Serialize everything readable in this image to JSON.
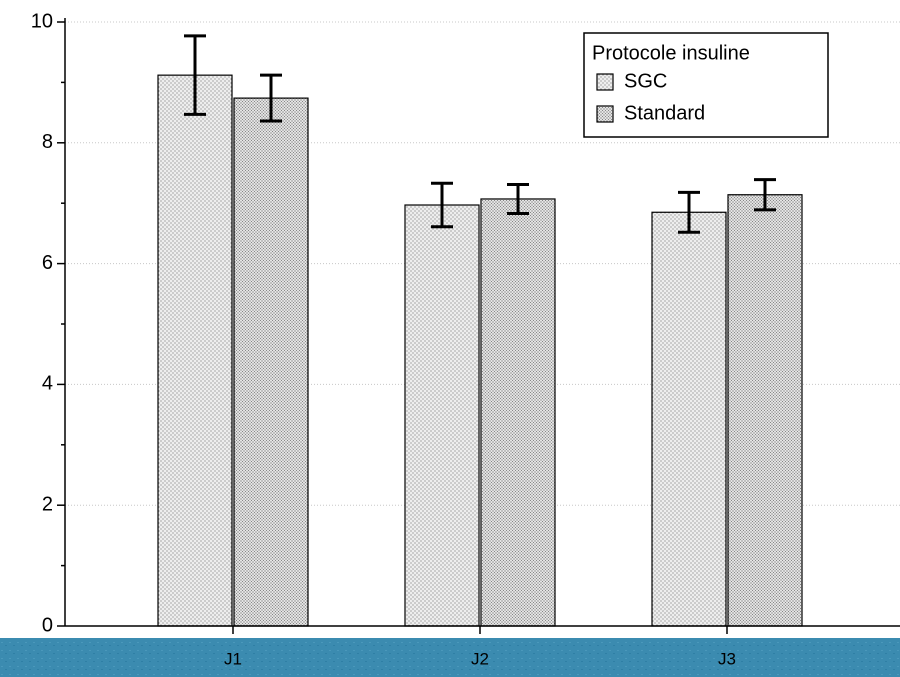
{
  "chart_data": {
    "type": "bar",
    "categories": [
      "J1",
      "J2",
      "J3"
    ],
    "series": [
      {
        "name": "SGC",
        "color": "#eeeeee",
        "values": [
          9.12,
          6.97,
          6.85
        ],
        "errors": [
          0.65,
          0.36,
          0.33
        ]
      },
      {
        "name": "Standard",
        "color": "#e4e4e4",
        "values": [
          8.74,
          7.07,
          7.14
        ],
        "errors": [
          0.38,
          0.24,
          0.25
        ]
      }
    ],
    "legend_title": "Protocole insuline",
    "legend": "top-right",
    "ylim": [
      0,
      10
    ],
    "yticks": [
      0,
      2,
      4,
      6,
      8,
      10
    ],
    "grid": true
  }
}
